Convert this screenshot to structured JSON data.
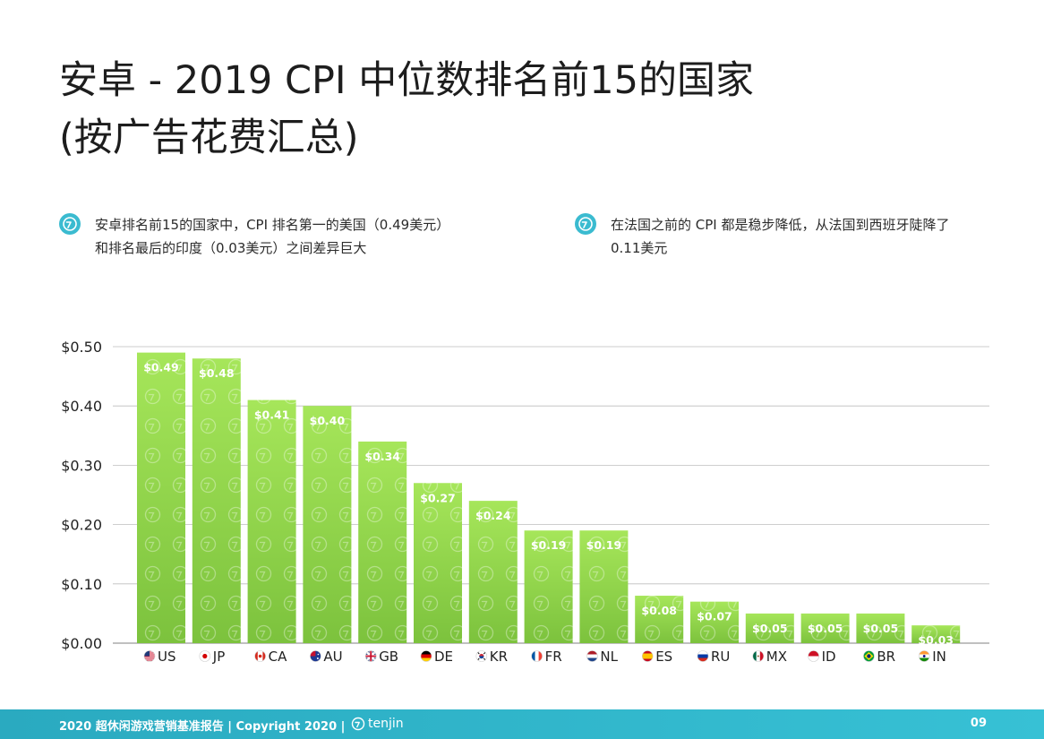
{
  "title": {
    "line1": "安卓 - 2019 CPI 中位数排名前15的国家",
    "line2": "(按广告花费汇总)"
  },
  "bullets": [
    {
      "icon": "tenjin-logo-icon",
      "text": "安卓排名前15的国家中，CPI 排名第一的美国（0.49美元）和排名最后的印度（0.03美元）之间差异巨大"
    },
    {
      "icon": "tenjin-logo-icon",
      "text": "在法国之前的 CPI 都是稳步降低，从法国到西班牙陡降了0.11美元"
    }
  ],
  "chart_data": {
    "type": "bar",
    "categories": [
      "US",
      "JP",
      "CA",
      "AU",
      "GB",
      "DE",
      "KR",
      "FR",
      "NL",
      "ES",
      "RU",
      "MX",
      "ID",
      "BR",
      "IN"
    ],
    "values": [
      0.49,
      0.48,
      0.41,
      0.4,
      0.34,
      0.27,
      0.24,
      0.19,
      0.19,
      0.08,
      0.07,
      0.05,
      0.05,
      0.05,
      0.03
    ],
    "data_labels": [
      "$0.49",
      "$0.48",
      "$0.41",
      "$0.40",
      "$0.34",
      "$0.27",
      "$0.24",
      "$0.19",
      "$0.19",
      "$0.08",
      "$0.07",
      "$0.05",
      "$0.05",
      "$0.05",
      "$0.03"
    ],
    "y_ticks": [
      "$0.00",
      "$0.10",
      "$0.20",
      "$0.30",
      "$0.40",
      "$0.50"
    ],
    "ylim": [
      0,
      0.5
    ],
    "grid": true,
    "legend": "none",
    "bar_color_top": "#a6e65a",
    "bar_color_bottom": "#7cc23d",
    "flag_icons": [
      "us-flag-icon",
      "jp-flag-icon",
      "ca-flag-icon",
      "au-flag-icon",
      "gb-flag-icon",
      "de-flag-icon",
      "kr-flag-icon",
      "fr-flag-icon",
      "nl-flag-icon",
      "es-flag-icon",
      "ru-flag-icon",
      "mx-flag-icon",
      "id-flag-icon",
      "br-flag-icon",
      "in-flag-icon"
    ]
  },
  "footer": {
    "text": "2020 超休闲游戏营销基准报告 | Copyright 2020 |",
    "brand": "tenjin",
    "page_number": "09"
  },
  "colors": {
    "accent": "#3bbbd0",
    "footer_bg": "#2aaac0"
  }
}
